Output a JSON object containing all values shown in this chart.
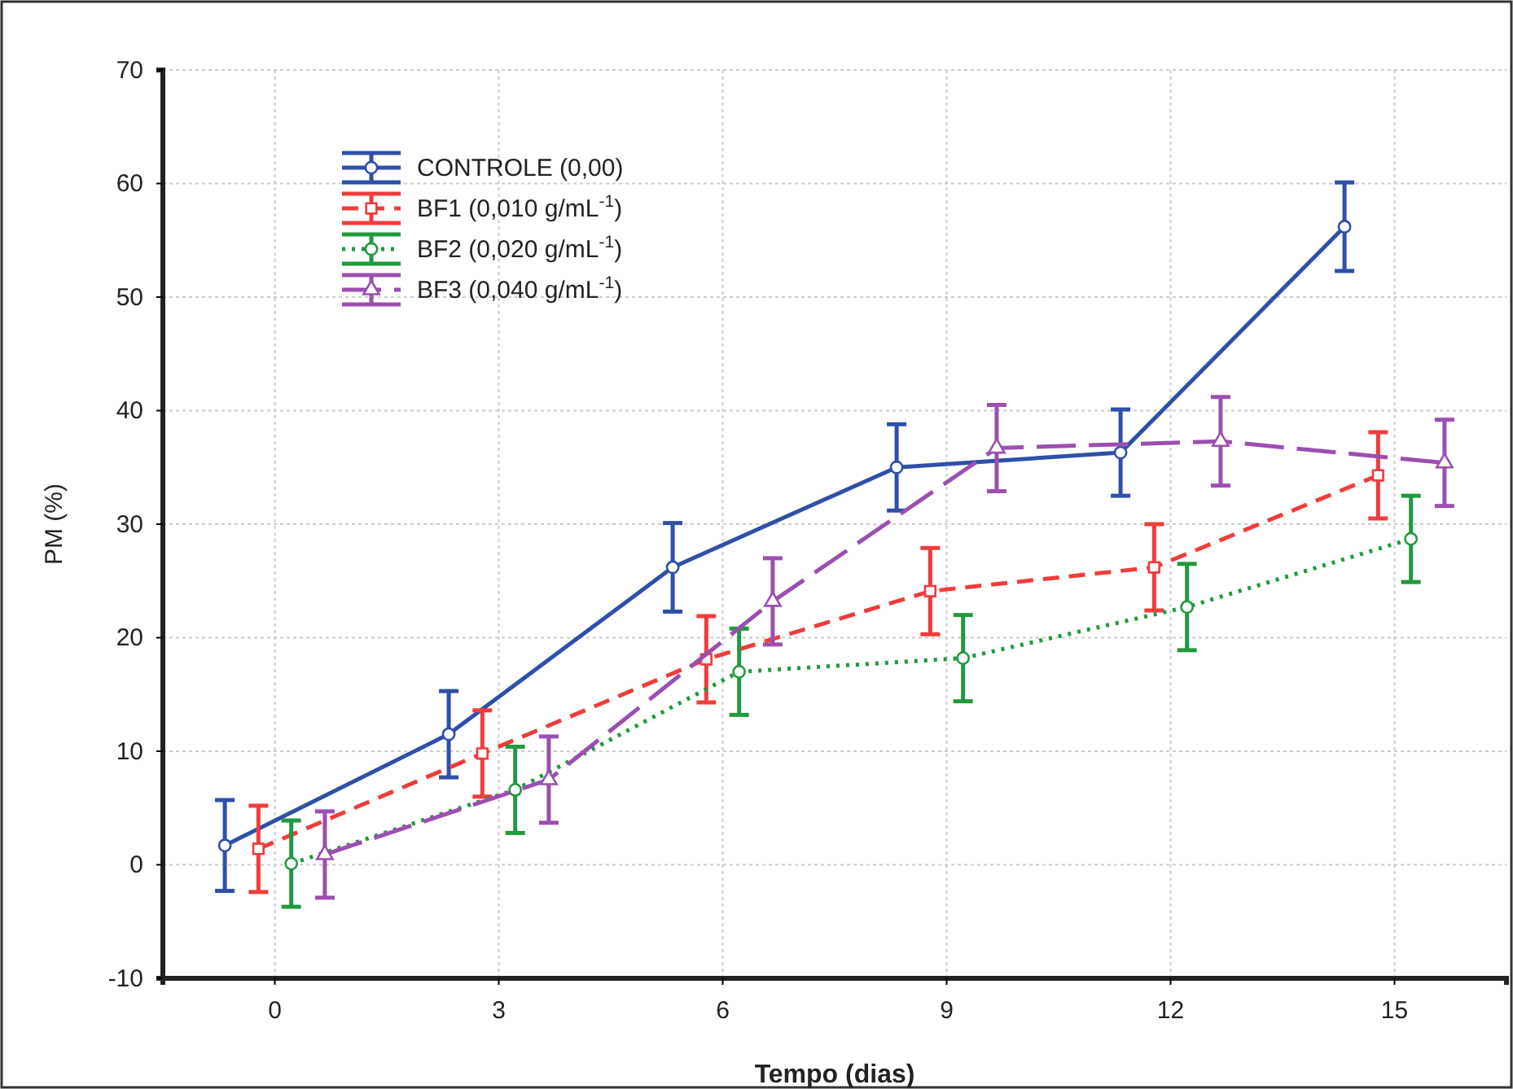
{
  "chart_data": {
    "type": "line",
    "xlabel": "Tempo (dias)",
    "ylabel": "PM (%)",
    "xlim": [
      -1.5,
      16.5
    ],
    "xticks": [
      0,
      3,
      6,
      9,
      12,
      15
    ],
    "ylim": [
      -10,
      70
    ],
    "yticks": [
      -10,
      0,
      10,
      20,
      30,
      40,
      50,
      60,
      70
    ],
    "grid": true,
    "legend": "top left",
    "series": [
      {
        "name": "CONTROLE (0,00)",
        "color": "#2f4fa8",
        "marker": "circle",
        "line_style": "solid",
        "x": [
          -0.67,
          2.33,
          5.33,
          8.33,
          11.33,
          14.33
        ],
        "values": [
          1.7,
          11.5,
          26.2,
          35.0,
          36.3,
          56.2
        ],
        "errors": [
          4.0,
          3.8,
          3.9,
          3.8,
          3.8,
          3.9
        ]
      },
      {
        "name": "BF1 (0,010 g/mL$^{-1}$)",
        "color": "#f03c3c",
        "marker": "square",
        "line_style": "dashed",
        "x": [
          -0.22,
          2.78,
          5.78,
          8.78,
          11.78,
          14.78
        ],
        "values": [
          1.4,
          9.8,
          18.1,
          24.1,
          26.2,
          34.3
        ],
        "errors": [
          3.8,
          3.8,
          3.8,
          3.8,
          3.8,
          3.8
        ]
      },
      {
        "name": "BF2 (0,020 g/mL$^{-1}$)",
        "color": "#1f9a3c",
        "marker": "circle",
        "line_style": "dotted",
        "x": [
          0.22,
          3.22,
          6.22,
          9.22,
          12.22,
          15.22
        ],
        "values": [
          0.1,
          6.6,
          17.0,
          18.2,
          22.7,
          28.7
        ],
        "errors": [
          3.8,
          3.8,
          3.8,
          3.8,
          3.8,
          3.8
        ]
      },
      {
        "name": "BF3 (0,040 g/mL$^{-1}$)",
        "color": "#9b4fb0",
        "marker": "triangle",
        "line_style": "longdash",
        "x": [
          0.67,
          3.67,
          6.67,
          9.67,
          12.67,
          15.67
        ],
        "values": [
          0.9,
          7.5,
          23.2,
          36.7,
          37.3,
          35.4
        ],
        "errors": [
          3.8,
          3.8,
          3.8,
          3.8,
          3.9,
          3.8
        ]
      }
    ]
  }
}
